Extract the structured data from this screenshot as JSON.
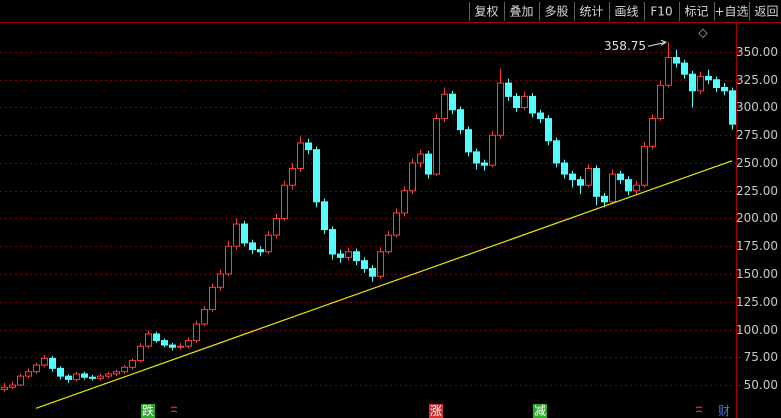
{
  "toolbar": [
    "复权",
    "叠加",
    "多股",
    "统计",
    "画线",
    "F10",
    "标记",
    "+自选",
    "返回"
  ],
  "chart_data": {
    "type": "candlestick",
    "open": [
      46,
      48,
      50,
      58,
      62,
      68,
      74,
      65,
      58,
      55,
      60,
      57,
      56,
      58,
      60,
      62,
      66,
      72,
      85,
      96,
      90,
      86,
      84,
      85,
      90,
      105,
      118,
      138,
      150,
      175,
      195,
      178,
      172,
      170,
      185,
      200,
      230,
      245,
      268,
      262,
      215,
      190,
      168,
      165,
      170,
      162,
      155,
      148,
      170,
      185,
      205,
      225,
      250,
      258,
      240,
      290,
      312,
      298,
      280,
      260,
      250,
      248,
      275,
      322,
      310,
      300,
      310,
      295,
      290,
      270,
      250,
      240,
      235,
      230,
      245,
      220,
      215,
      240,
      235,
      225,
      230,
      265,
      290,
      320,
      345,
      340,
      330,
      315,
      328,
      325,
      318,
      315
    ],
    "high": [
      52,
      53,
      60,
      65,
      70,
      77,
      76,
      67,
      60,
      62,
      62,
      59,
      60,
      62,
      64,
      68,
      74,
      88,
      99,
      98,
      92,
      88,
      88,
      93,
      108,
      121,
      141,
      154,
      180,
      200,
      198,
      181,
      175,
      189,
      204,
      234,
      250,
      274,
      272,
      265,
      218,
      193,
      172,
      174,
      173,
      165,
      158,
      174,
      189,
      209,
      229,
      254,
      262,
      261,
      294,
      318,
      315,
      301,
      283,
      263,
      253,
      279,
      335,
      326,
      313,
      314,
      313,
      298,
      293,
      273,
      253,
      243,
      238,
      249,
      248,
      223,
      244,
      243,
      238,
      234,
      269,
      294,
      324,
      358.75,
      352,
      343,
      333,
      332,
      334,
      328,
      322,
      318
    ],
    "low": [
      44,
      46,
      49,
      56,
      60,
      66,
      62,
      55,
      52,
      53,
      55,
      54,
      54,
      56,
      58,
      60,
      64,
      70,
      83,
      88,
      84,
      81,
      82,
      83,
      88,
      103,
      116,
      135,
      148,
      172,
      175,
      168,
      166,
      168,
      182,
      198,
      226,
      242,
      258,
      210,
      186,
      163,
      160,
      162,
      158,
      151,
      143,
      146,
      168,
      183,
      202,
      222,
      246,
      236,
      238,
      287,
      294,
      276,
      256,
      244,
      243,
      246,
      272,
      306,
      296,
      298,
      291,
      286,
      266,
      246,
      236,
      228,
      222,
      228,
      212,
      210,
      213,
      231,
      221,
      222,
      228,
      262,
      288,
      318,
      336,
      326,
      300,
      312,
      321,
      314,
      311,
      280
    ],
    "close": [
      48,
      50,
      58,
      62,
      68,
      74,
      65,
      58,
      55,
      60,
      57,
      56,
      58,
      60,
      62,
      66,
      72,
      85,
      96,
      90,
      86,
      84,
      85,
      90,
      105,
      118,
      138,
      150,
      175,
      195,
      178,
      172,
      170,
      185,
      200,
      230,
      245,
      268,
      262,
      215,
      190,
      168,
      165,
      170,
      162,
      155,
      148,
      170,
      185,
      205,
      225,
      250,
      258,
      240,
      290,
      312,
      298,
      280,
      260,
      250,
      248,
      275,
      322,
      310,
      300,
      310,
      295,
      290,
      270,
      250,
      240,
      235,
      230,
      245,
      220,
      215,
      240,
      235,
      225,
      230,
      265,
      290,
      320,
      345,
      340,
      330,
      315,
      328,
      325,
      318,
      315,
      285
    ],
    "up_color": "#ff3c3c",
    "down_color": "#54fcfc",
    "ylim": [
      36.5,
      371.6
    ],
    "yticks": [
      {
        "value": 50,
        "label": "50.00"
      },
      {
        "value": 75,
        "label": "75.00"
      },
      {
        "value": 100,
        "label": "100.00"
      },
      {
        "value": 125,
        "label": "125.00"
      },
      {
        "value": 150,
        "label": "150.00"
      },
      {
        "value": 175,
        "label": "175.00"
      },
      {
        "value": 200,
        "label": "200.00"
      },
      {
        "value": 225,
        "label": "225.00"
      },
      {
        "value": 250,
        "label": "250.00"
      },
      {
        "value": 275,
        "label": "275.00"
      },
      {
        "value": 300,
        "label": "300.00"
      },
      {
        "value": 325,
        "label": "325.00"
      },
      {
        "value": 350,
        "label": "350.00"
      }
    ],
    "grid": true,
    "annotation": {
      "label": "358.75",
      "value": 358.75,
      "index": 83
    },
    "trendline": {
      "x": [
        4,
        91
      ],
      "values": [
        29,
        252
      ],
      "color": "#e8e800"
    },
    "events": [
      {
        "label": "跌",
        "index": 18,
        "color": "#2ea82e"
      },
      {
        "label": "涨",
        "index": 54,
        "color": "#d03030"
      },
      {
        "label": "减",
        "index": 67,
        "color": "#2ea82e"
      },
      {
        "label": "财",
        "index": 90,
        "color": "#3a7ae0"
      }
    ]
  }
}
